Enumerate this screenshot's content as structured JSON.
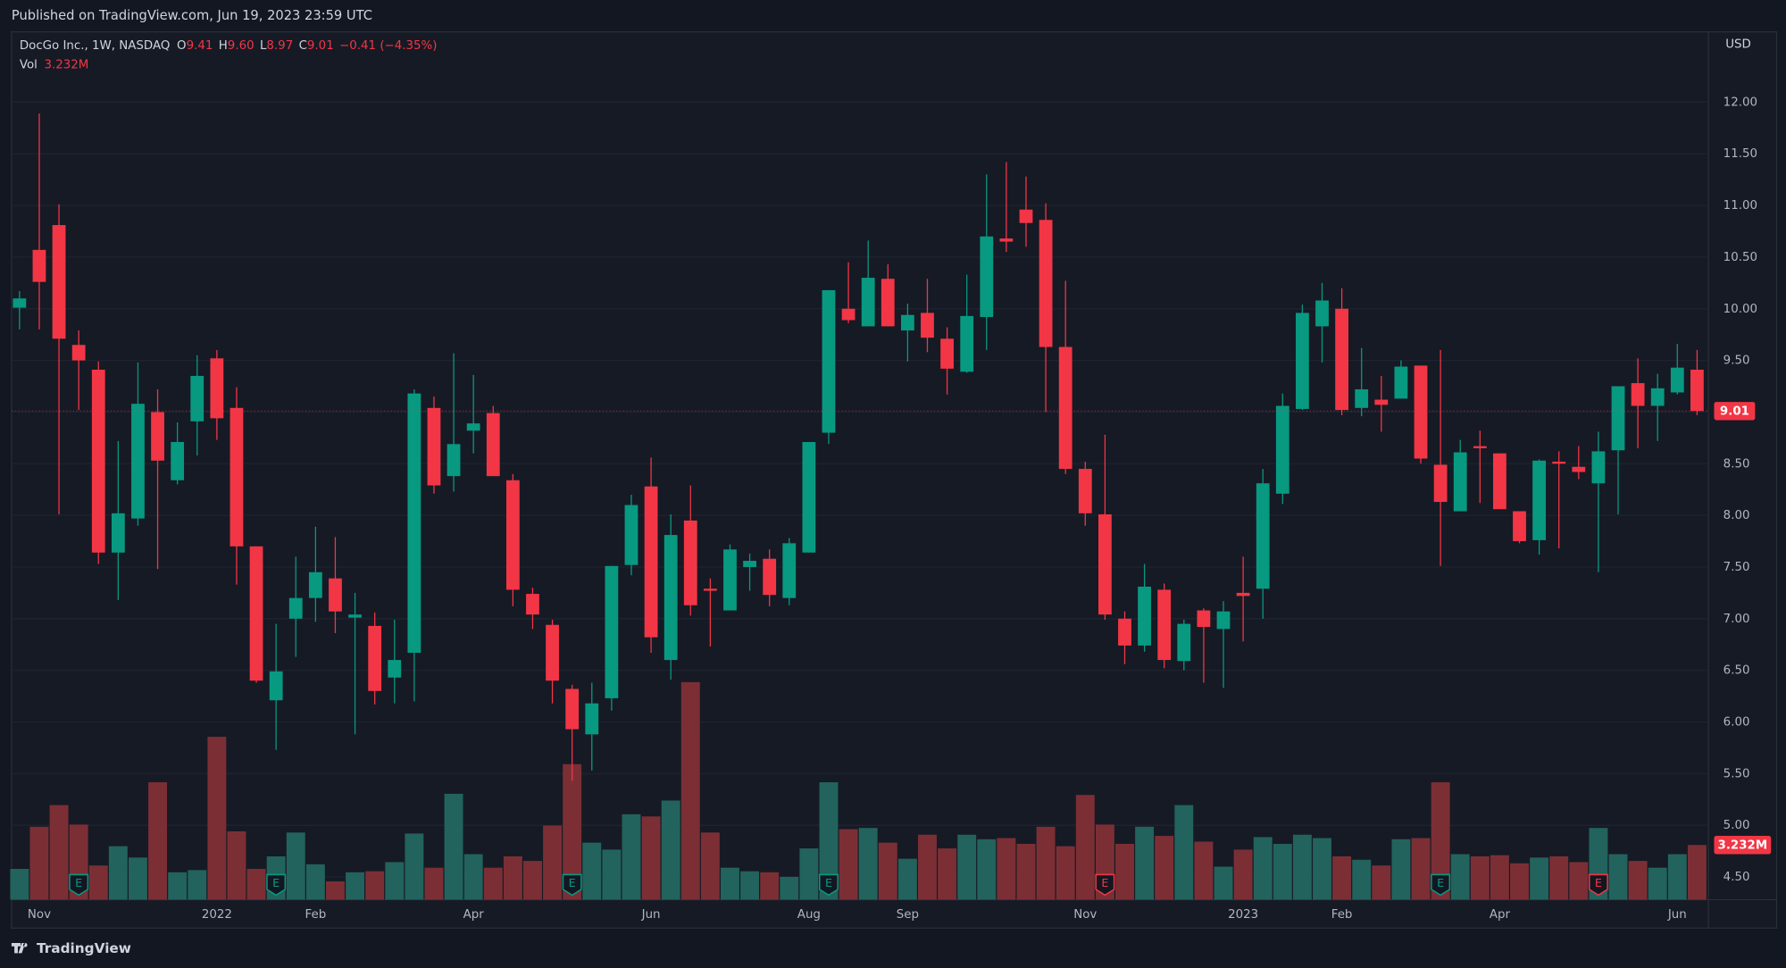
{
  "chart_data": {
    "type": "candlestick",
    "published": "Published on TradingView.com, Jun 19, 2023 23:59 UTC",
    "symbol": "DocGo Inc., 1W, NASDAQ",
    "legend": [
      {
        "key": "O",
        "label": "9.41"
      },
      {
        "key": "H",
        "label": "9.60"
      },
      {
        "key": "L",
        "label": "8.97"
      },
      {
        "key": "C",
        "label": "9.01"
      }
    ],
    "change_label": "−0.41 (−4.35%)",
    "volume_title": "Vol",
    "currency": "USD",
    "logo": "TradingView",
    "up_color": "#089981",
    "down_color": "#f23645",
    "grid": true,
    "categories": [
      null,
      "Nov",
      null,
      null,
      null,
      null,
      null,
      null,
      null,
      null,
      "2022",
      null,
      null,
      null,
      null,
      "Feb",
      null,
      null,
      null,
      null,
      null,
      null,
      null,
      "Apr",
      null,
      null,
      null,
      null,
      null,
      null,
      null,
      null,
      "Jun",
      null,
      null,
      null,
      null,
      null,
      null,
      null,
      "Aug",
      null,
      null,
      null,
      null,
      "Sep",
      null,
      null,
      null,
      null,
      null,
      null,
      null,
      null,
      "Nov",
      null,
      null,
      null,
      null,
      null,
      null,
      null,
      "2023",
      null,
      null,
      null,
      null,
      "Feb",
      null,
      null,
      null,
      null,
      null,
      null,
      null,
      "Apr",
      null,
      null,
      null,
      null,
      null,
      null,
      null,
      null,
      "Jun",
      null
    ],
    "open": [
      10.01,
      10.57,
      10.81,
      9.65,
      9.41,
      7.64,
      7.97,
      9.0,
      8.34,
      8.91,
      9.52,
      9.04,
      7.7,
      6.21,
      7.0,
      7.2,
      7.39,
      7.01,
      6.93,
      6.43,
      6.67,
      9.04,
      8.38,
      8.82,
      8.99,
      8.34,
      7.24,
      6.94,
      6.32,
      5.88,
      6.23,
      7.52,
      8.28,
      6.6,
      7.95,
      7.29,
      7.08,
      7.5,
      7.58,
      7.2,
      7.64,
      8.8,
      10.0,
      9.83,
      10.29,
      9.79,
      9.96,
      9.71,
      9.39,
      9.92,
      10.68,
      10.96,
      10.86,
      9.63,
      8.45,
      8.01,
      7.0,
      6.74,
      7.28,
      6.59,
      7.08,
      6.9,
      7.25,
      7.29,
      8.21,
      9.03,
      9.83,
      10.0,
      9.04,
      9.12,
      9.13,
      9.45,
      8.49,
      8.04,
      8.67,
      8.6,
      8.04,
      7.76,
      8.52,
      8.47,
      8.31,
      8.63,
      9.28,
      9.06,
      9.19,
      9.41
    ],
    "high": [
      10.17,
      11.89,
      11.01,
      9.79,
      9.49,
      8.72,
      9.48,
      9.22,
      8.9,
      9.55,
      9.6,
      9.24,
      7.7,
      6.95,
      7.6,
      7.89,
      7.79,
      7.25,
      7.06,
      6.99,
      9.22,
      9.15,
      9.57,
      9.36,
      9.06,
      8.4,
      7.3,
      6.99,
      6.36,
      6.38,
      7.51,
      8.2,
      8.56,
      8.01,
      8.29,
      7.39,
      7.72,
      7.63,
      7.67,
      7.78,
      8.71,
      10.18,
      10.45,
      10.66,
      10.43,
      10.05,
      10.29,
      9.82,
      10.33,
      11.3,
      11.42,
      11.28,
      11.02,
      10.27,
      8.52,
      8.78,
      7.07,
      7.53,
      7.34,
      6.99,
      7.1,
      7.17,
      7.6,
      8.45,
      9.18,
      10.04,
      10.25,
      10.2,
      9.62,
      9.35,
      9.5,
      9.45,
      9.6,
      8.73,
      8.82,
      8.6,
      8.04,
      8.54,
      8.62,
      8.67,
      8.81,
      9.25,
      9.52,
      9.37,
      9.66,
      9.6
    ],
    "low": [
      9.8,
      9.8,
      8.01,
      9.02,
      7.53,
      7.18,
      7.9,
      7.48,
      8.3,
      8.58,
      8.73,
      7.33,
      6.38,
      5.73,
      6.63,
      6.97,
      6.86,
      5.88,
      6.17,
      6.18,
      6.2,
      8.21,
      8.23,
      8.6,
      8.38,
      7.12,
      6.9,
      6.18,
      5.43,
      5.53,
      6.11,
      7.42,
      6.67,
      6.41,
      7.03,
      6.73,
      7.08,
      7.27,
      7.12,
      7.13,
      7.64,
      8.69,
      9.86,
      9.83,
      9.83,
      9.49,
      9.58,
      9.17,
      9.38,
      9.6,
      10.55,
      10.6,
      9.0,
      8.4,
      7.9,
      6.99,
      6.56,
      6.68,
      6.52,
      6.5,
      6.38,
      6.33,
      6.78,
      7.0,
      8.11,
      9.02,
      9.48,
      8.97,
      8.96,
      8.81,
      9.13,
      8.5,
      7.51,
      8.04,
      8.12,
      8.06,
      7.73,
      7.62,
      7.68,
      8.35,
      7.45,
      8.01,
      8.65,
      8.72,
      9.17,
      8.97
    ],
    "close": [
      10.1,
      10.26,
      9.71,
      9.5,
      7.64,
      8.02,
      9.08,
      8.53,
      8.71,
      9.35,
      8.94,
      7.7,
      6.4,
      6.49,
      7.2,
      7.45,
      7.07,
      7.04,
      6.3,
      6.6,
      9.18,
      8.29,
      8.69,
      8.89,
      8.38,
      7.28,
      7.04,
      6.4,
      5.93,
      6.18,
      7.51,
      8.1,
      6.82,
      7.81,
      7.13,
      7.27,
      7.67,
      7.56,
      7.23,
      7.73,
      8.71,
      10.18,
      9.89,
      10.3,
      9.83,
      9.94,
      9.72,
      9.42,
      9.93,
      10.7,
      10.65,
      10.83,
      9.63,
      8.45,
      8.02,
      7.04,
      6.74,
      7.31,
      6.6,
      6.95,
      6.92,
      7.07,
      7.22,
      8.31,
      9.06,
      9.96,
      10.08,
      9.02,
      9.22,
      9.07,
      9.44,
      8.55,
      8.13,
      8.61,
      8.65,
      8.06,
      7.75,
      8.53,
      8.5,
      8.42,
      8.62,
      9.25,
      9.06,
      9.23,
      9.43,
      9.01
    ],
    "volume": {
      "values": [
        1.82,
        4.31,
        5.59,
        4.44,
        2.02,
        3.16,
        2.49,
        6.94,
        1.62,
        1.75,
        9.63,
        4.04,
        1.82,
        2.56,
        3.97,
        2.09,
        1.08,
        1.62,
        1.68,
        2.22,
        3.91,
        1.89,
        6.26,
        2.69,
        1.89,
        2.56,
        2.29,
        4.38,
        8.01,
        3.37,
        2.96,
        5.05,
        4.92,
        5.86,
        12.86,
        3.97,
        1.89,
        1.68,
        1.62,
        1.35,
        3.03,
        6.94,
        4.17,
        4.24,
        3.37,
        2.42,
        3.84,
        3.03,
        3.84,
        3.57,
        3.64,
        3.3,
        4.31,
        3.16,
        6.19,
        4.44,
        3.3,
        4.31,
        3.77,
        5.59,
        3.43,
        1.95,
        2.96,
        3.7,
        3.3,
        3.84,
        3.64,
        2.56,
        2.36,
        2.02,
        3.57,
        3.64,
        6.94,
        2.69,
        2.56,
        2.63,
        2.15,
        2.49,
        2.56,
        2.22,
        4.24,
        2.69,
        2.29,
        1.89,
        2.69,
        3.232
      ],
      "last_label": "3.232M",
      "up_color": "#22635d",
      "down_color": "#7b2f35",
      "vlim": [
        0,
        51.3
      ]
    },
    "events": [
      null,
      null,
      null,
      {
        "label": "E",
        "color": "#089981"
      },
      null,
      null,
      null,
      null,
      null,
      null,
      null,
      null,
      null,
      {
        "label": "E",
        "color": "#089981"
      },
      null,
      null,
      null,
      null,
      null,
      null,
      null,
      null,
      null,
      null,
      null,
      null,
      null,
      null,
      {
        "label": "E",
        "color": "#089981"
      },
      null,
      null,
      null,
      null,
      null,
      null,
      null,
      null,
      null,
      null,
      null,
      null,
      {
        "label": "E",
        "color": "#089981"
      },
      null,
      null,
      null,
      null,
      null,
      null,
      null,
      null,
      null,
      null,
      null,
      null,
      null,
      {
        "label": "E",
        "color": "#f23645"
      },
      null,
      null,
      null,
      null,
      null,
      null,
      null,
      null,
      null,
      null,
      null,
      null,
      null,
      null,
      null,
      null,
      {
        "label": "E",
        "color": "#089981"
      },
      null,
      null,
      null,
      null,
      null,
      null,
      null,
      {
        "label": "E",
        "color": "#f23645"
      },
      null,
      null,
      null,
      null,
      null
    ],
    "ylim": [
      4.28,
      12.68
    ],
    "yticks": [
      {
        "value": 4.5,
        "label": "4.50"
      },
      {
        "value": 5,
        "label": "5.00"
      },
      {
        "value": 5.5,
        "label": "5.50"
      },
      {
        "value": 6,
        "label": "6.00"
      },
      {
        "value": 6.5,
        "label": "6.50"
      },
      {
        "value": 7,
        "label": "7.00"
      },
      {
        "value": 7.5,
        "label": "7.50"
      },
      {
        "value": 8,
        "label": "8.00"
      },
      {
        "value": 8.5,
        "label": "8.50"
      },
      {
        "value": 9,
        "label": "9.00"
      },
      {
        "value": 9.5,
        "label": "9.50"
      },
      {
        "value": 10,
        "label": "10.00"
      },
      {
        "value": 10.5,
        "label": "10.50"
      },
      {
        "value": 11,
        "label": "11.00"
      },
      {
        "value": 11.5,
        "label": "11.50"
      },
      {
        "value": 12,
        "label": "12.00"
      }
    ]
  }
}
